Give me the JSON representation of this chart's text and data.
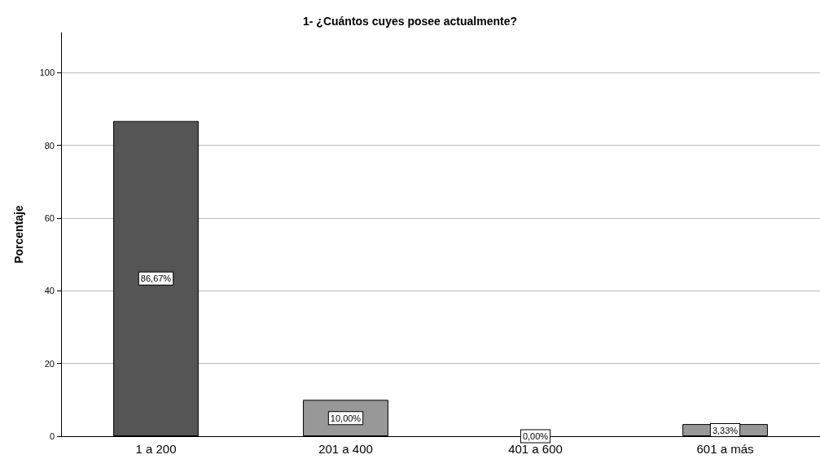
{
  "chart_data": {
    "type": "bar",
    "title": "1- ¿Cuántos cuyes posee actualmente?",
    "ylabel": "Porcentaje",
    "categories": [
      "1 a 200",
      "201 a 400",
      "401 a 600",
      "601 a más"
    ],
    "values": [
      86.67,
      10.0,
      0.0,
      3.33
    ],
    "colors": [
      "#555555",
      "#989898",
      "#989898",
      "#989898"
    ],
    "value_labels": [
      "86,67%",
      "10,00%",
      "0,00%",
      "3,33%"
    ],
    "ylim": [
      0,
      111
    ],
    "yticks": [
      0,
      20,
      40,
      60,
      80,
      100
    ],
    "grid": "y"
  }
}
